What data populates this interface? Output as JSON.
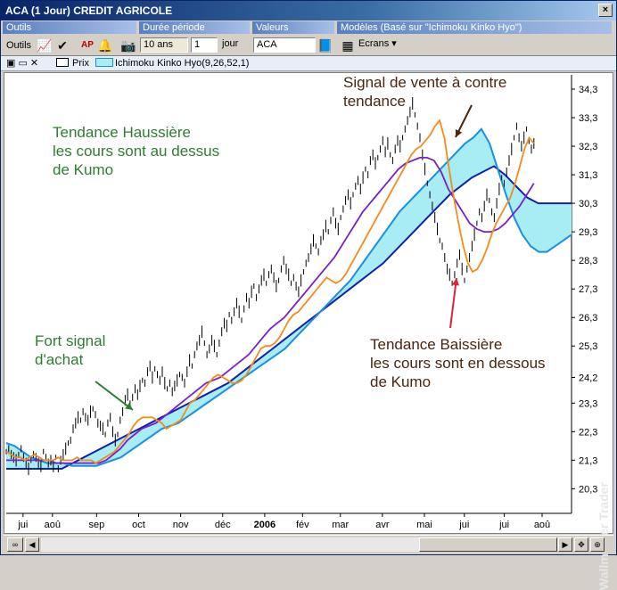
{
  "window": {
    "title": "ACA (1 Jour) CREDIT AGRICOLE",
    "close": "×"
  },
  "toolbar_labels": {
    "outils": "Outils",
    "duree": "Durée  période",
    "valeurs": "Valeurs",
    "modeles": "Modèles (Basé sur \"Ichimoku Kinko Hyo\")"
  },
  "toolbar": {
    "outils_value": "Outils",
    "duration_value": "10 ans",
    "period_value": "1",
    "period_unit": "jour",
    "valeur_value": "ACA",
    "ecrans_label": "Ecrans"
  },
  "series_bar": {
    "prix_label": "Prix",
    "indicator_label": "Ichimoku Kinko Hyo(9,26,52,1)"
  },
  "colors": {
    "price": "#000000",
    "tenkan": "#f28c1a",
    "kijun": "#7a1fc9",
    "senkou_a": "#1a8fe3",
    "senkou_b": "#1020b0",
    "cloud": "#a8ecf4",
    "annotation_green": "#2e7d32",
    "annotation_dark": "#4a2510"
  },
  "annotations": {
    "haussiere": [
      "Tendance Haussière",
      "les cours sont au dessus",
      "de Kumo"
    ],
    "achat": [
      "Fort signal",
      "d'achat"
    ],
    "vente": [
      "Signal de vente à contre",
      "tendance"
    ],
    "baissiere": [
      "Tendance Baissière",
      "les cours sont en dessous",
      "de Kumo"
    ]
  },
  "watermark": "Wallmaster Trader",
  "chart_data": {
    "type": "line",
    "y_ticks": [
      "34,3",
      "33,3",
      "32,3",
      "31,3",
      "30,3",
      "29,3",
      "28,3",
      "27,3",
      "26,3",
      "25,3",
      "24,2",
      "23,3",
      "22,3",
      "21,3",
      "20,3"
    ],
    "ylim": [
      19.5,
      34.8
    ],
    "x_labels": [
      "jui",
      "aoû",
      "sep",
      "oct",
      "nov",
      "déc",
      "2006",
      "fév",
      "mar",
      "avr",
      "mai",
      "jui",
      "jui",
      "aoû"
    ],
    "x_label_index": [
      8,
      22,
      43,
      63,
      83,
      103,
      123,
      141,
      159,
      179,
      199,
      218,
      237,
      255
    ],
    "n_points": 270,
    "price": [
      21.6,
      21.7,
      21.5,
      21.4,
      21.3,
      21.5,
      21.7,
      21.4,
      21.2,
      21.0,
      21.3,
      21.5,
      21.4,
      21.2,
      21.1,
      21.6,
      21.4,
      21.2,
      21.3,
      21.1,
      21.4,
      21.0,
      21.3,
      21.5,
      21.7,
      21.9,
      22.0,
      22.4,
      22.6,
      22.8,
      22.7,
      23.0,
      22.8,
      22.7,
      23.0,
      23.1,
      22.9,
      22.6,
      22.5,
      22.4,
      22.2,
      22.6,
      22.8,
      22.3,
      22.0,
      22.2,
      22.7,
      23.0,
      23.4,
      23.6,
      23.3,
      23.5,
      23.8,
      23.6,
      23.9,
      24.1,
      24.0,
      24.4,
      24.6,
      24.2,
      24.5,
      24.3,
      24.1,
      24.4,
      24.0,
      23.8,
      24.0,
      23.7,
      23.9,
      24.1,
      24.3,
      24.2,
      24.0,
      24.4,
      24.8,
      24.6,
      25.0,
      25.3,
      25.5,
      25.8,
      25.4,
      25.0,
      25.2,
      25.5,
      25.3,
      25.0,
      25.4,
      25.8,
      26.1,
      26.0,
      26.4,
      26.2,
      26.5,
      26.8,
      26.5,
      26.2,
      26.6,
      27.0,
      26.8,
      27.2,
      27.4,
      27.0,
      27.3,
      27.6,
      27.8,
      27.5,
      27.8,
      28.0,
      27.7,
      27.4,
      27.6,
      28.0,
      28.3,
      28.0,
      27.8,
      27.5,
      27.7,
      27.4,
      27.2,
      27.6,
      27.9,
      28.2,
      28.4,
      28.7,
      29.0,
      28.8,
      28.6,
      29.0,
      29.2,
      29.5,
      29.3,
      29.7,
      30.0,
      29.6,
      29.4,
      29.8,
      30.1,
      30.4,
      30.6,
      30.3,
      30.6,
      30.9,
      31.1,
      30.8,
      31.2,
      31.5,
      31.3,
      31.8,
      32.0,
      31.7,
      31.9,
      32.2,
      32.5,
      32.1,
      32.4,
      32.0,
      31.8,
      32.2,
      32.5,
      32.3,
      32.6,
      32.9,
      33.2,
      33.5,
      33.8,
      33.4,
      33.0,
      32.6,
      32.0,
      31.5,
      31.0,
      30.6,
      30.2,
      29.8,
      29.4,
      29.0,
      28.8,
      28.4,
      28.0,
      27.8,
      27.5,
      27.8,
      28.2,
      28.5,
      28.0,
      27.6,
      28.0,
      28.4,
      28.8,
      29.2,
      29.6,
      30.0,
      29.8,
      30.2,
      30.6,
      30.4,
      30.0,
      29.8,
      30.3,
      30.8,
      31.2,
      31.0,
      31.4,
      31.8,
      32.2,
      32.6,
      33.0,
      32.6,
      32.3,
      32.6,
      32.9,
      32.5,
      32.2,
      32.4
    ],
    "tenkan": [
      21.6,
      21.5,
      21.4,
      21.4,
      21.3,
      21.4,
      21.5,
      21.4,
      21.3,
      21.3,
      21.3,
      21.4,
      21.3,
      21.3,
      21.3,
      21.4,
      21.3,
      21.3,
      21.3,
      21.2,
      21.3,
      21.4,
      21.5,
      21.6,
      21.8,
      22.0,
      22.2,
      22.5,
      22.7,
      22.8,
      22.8,
      22.8,
      22.7,
      22.6,
      22.4,
      22.5,
      22.6,
      22.7,
      23.0,
      23.3,
      23.4,
      23.6,
      23.8,
      24.0,
      24.2,
      24.3,
      24.2,
      24.1,
      24.0,
      24.0,
      24.1,
      24.3,
      24.6,
      24.9,
      25.2,
      25.3,
      25.3,
      25.4,
      25.6,
      25.9,
      26.2,
      26.4,
      26.5,
      26.7,
      26.9,
      27.1,
      27.3,
      27.5,
      27.7,
      27.6,
      27.5,
      27.6,
      27.8,
      28.1,
      28.4,
      28.7,
      29.0,
      29.3,
      29.6,
      29.9,
      30.2,
      30.5,
      30.8,
      31.1,
      31.4,
      31.7,
      32.0,
      32.2,
      32.3,
      32.5,
      32.7,
      33.0,
      33.2,
      32.6,
      31.5,
      30.5,
      29.6,
      28.8,
      28.2,
      27.9,
      28.0,
      28.3,
      28.7,
      29.2,
      29.6,
      29.9,
      30.2,
      30.5,
      31.0,
      31.6,
      32.2,
      32.6,
      32.4
    ],
    "kijun": [
      21.3,
      21.3,
      21.3,
      21.3,
      21.3,
      21.3,
      21.3,
      21.2,
      21.2,
      21.2,
      21.2,
      21.2,
      21.2,
      21.2,
      21.3,
      21.5,
      21.7,
      22.0,
      22.2,
      22.4,
      22.5,
      22.6,
      22.8,
      23.0,
      23.2,
      23.4,
      23.6,
      23.8,
      24.0,
      24.1,
      24.2,
      24.4,
      24.6,
      24.8,
      25.0,
      25.3,
      25.6,
      25.9,
      26.1,
      26.3,
      26.6,
      26.9,
      27.2,
      27.5,
      27.8,
      28.1,
      28.4,
      28.8,
      29.2,
      29.6,
      30.0,
      30.3,
      30.6,
      30.9,
      31.2,
      31.5,
      31.7,
      31.8,
      31.9,
      31.9,
      31.8,
      31.4,
      30.8,
      30.4,
      30.0,
      29.6,
      29.4,
      29.3,
      29.3,
      29.4,
      29.6,
      29.9,
      30.2,
      30.6,
      31.0
    ],
    "senkou_a": [
      21.9,
      21.8,
      21.6,
      21.4,
      21.3,
      21.2,
      21.2,
      21.2,
      21.1,
      21.1,
      21.1,
      21.1,
      21.2,
      21.3,
      21.4,
      21.6,
      21.8,
      22.0,
      22.2,
      22.4,
      22.5,
      22.6,
      22.8,
      23.0,
      23.2,
      23.4,
      23.6,
      23.8,
      24.0,
      24.2,
      24.4,
      24.6,
      24.8,
      25.0,
      25.2,
      25.5,
      25.8,
      26.1,
      26.4,
      26.7,
      27.0,
      27.3,
      27.6,
      28.0,
      28.4,
      28.8,
      29.2,
      29.6,
      30.0,
      30.3,
      30.6,
      30.9,
      31.2,
      31.5,
      31.8,
      32.1,
      32.4,
      32.6,
      32.9,
      32.4,
      31.5,
      30.6,
      29.8,
      29.2,
      28.8,
      28.6,
      28.6,
      28.8,
      29.0,
      29.2
    ],
    "senkou_b": [
      21.0,
      21.0,
      21.0,
      21.0,
      21.0,
      21.0,
      21.2,
      21.4,
      21.6,
      21.8,
      22.0,
      22.2,
      22.4,
      22.6,
      22.8,
      23.0,
      23.2,
      23.4,
      23.6,
      23.8,
      24.0,
      24.3,
      24.6,
      24.9,
      25.2,
      25.5,
      25.8,
      26.1,
      26.4,
      26.7,
      27.0,
      27.3,
      27.6,
      27.9,
      28.2,
      28.6,
      29.0,
      29.4,
      29.8,
      30.2,
      30.6,
      30.9,
      31.2,
      31.4,
      31.6,
      31.3,
      30.9,
      30.5,
      30.3,
      30.3,
      30.3,
      30.3
    ]
  }
}
